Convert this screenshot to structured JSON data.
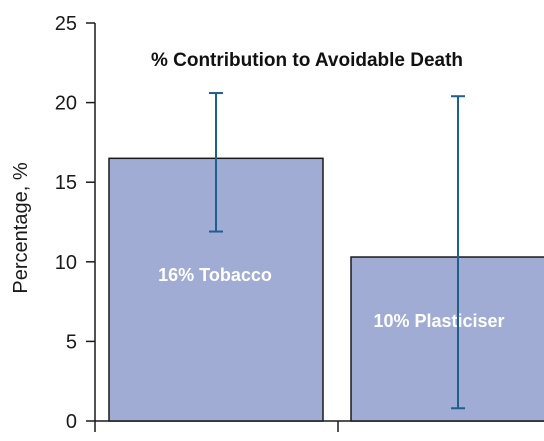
{
  "chart_data": {
    "type": "bar",
    "title": "% Contribution to Avoidable Death",
    "xlabel": "",
    "ylabel": "Percentage, %",
    "ylim": [
      0,
      25
    ],
    "yticks": [
      0,
      5,
      10,
      15,
      20,
      25
    ],
    "categories": [
      "16% Tobacco",
      "10% Plasticiser"
    ],
    "values": [
      16.5,
      10.3
    ],
    "error_low": [
      11.9,
      0.8
    ],
    "error_high": [
      20.6,
      20.4
    ],
    "grid": false,
    "colors": {
      "bar_fill": "#a1acd5",
      "bar_stroke": "#1a1a1a",
      "error_bar": "#1f5f8b",
      "axis": "#1a1a1a"
    }
  }
}
